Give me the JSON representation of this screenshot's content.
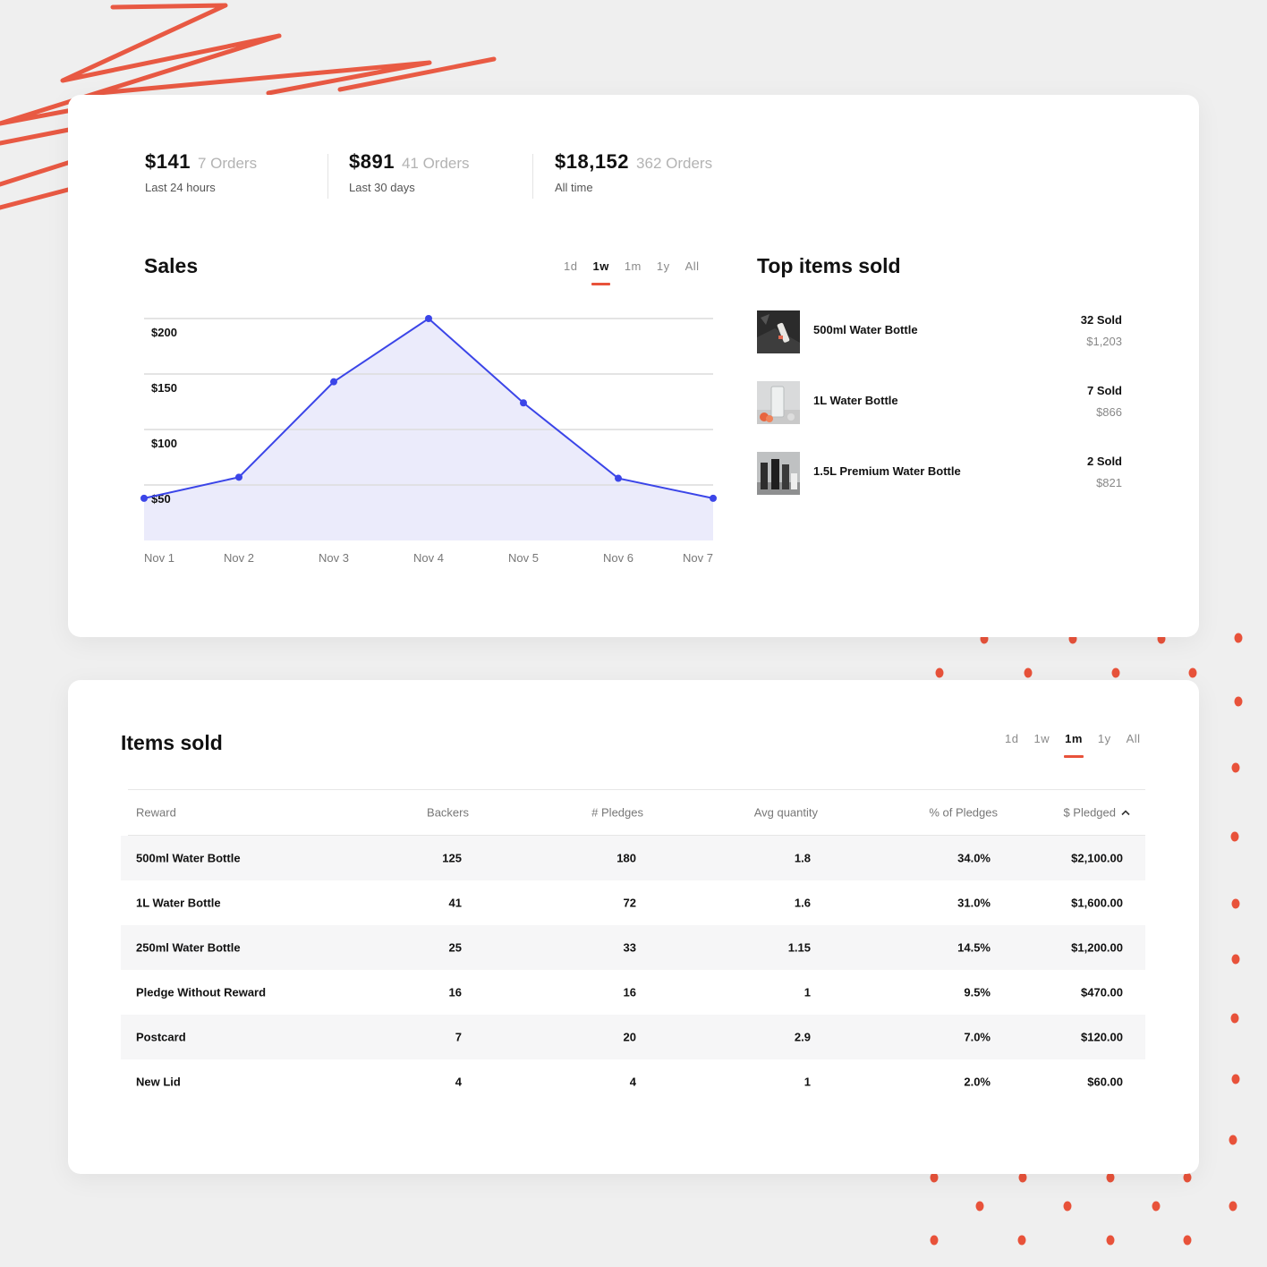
{
  "stats": [
    {
      "amount": "$141",
      "orders": "7 Orders",
      "label": "Last 24 hours"
    },
    {
      "amount": "$891",
      "orders": "41 Orders",
      "label": "Last 30 days"
    },
    {
      "amount": "$18,152",
      "orders": "362 Orders",
      "label": "All time"
    }
  ],
  "sales": {
    "title": "Sales",
    "tabs": [
      "1d",
      "1w",
      "1m",
      "1y",
      "All"
    ],
    "active_tab": "1w"
  },
  "chart_data": {
    "type": "area",
    "title": "Sales",
    "categories": [
      "Nov 1",
      "Nov 2",
      "Nov 3",
      "Nov 4",
      "Nov 5",
      "Nov 6",
      "Nov 7"
    ],
    "values": [
      38,
      57,
      143,
      200,
      124,
      56,
      38
    ],
    "y_ticks": [
      "$50",
      "$100",
      "$150",
      "$200"
    ],
    "y_tick_values": [
      50,
      100,
      150,
      200
    ],
    "ylim": [
      0,
      200
    ],
    "grid": true,
    "line_color": "#3b45e8",
    "fill_color": "#ebebfb"
  },
  "top_items": {
    "title": "Top items sold",
    "items": [
      {
        "name": "500ml Water Bottle",
        "sold": "32 Sold",
        "revenue": "$1,203"
      },
      {
        "name": "1L Water Bottle",
        "sold": "7 Sold",
        "revenue": "$866"
      },
      {
        "name": "1.5L Premium Water Bottle",
        "sold": "2 Sold",
        "revenue": "$821"
      }
    ]
  },
  "items_sold": {
    "title": "Items sold",
    "tabs": [
      "1d",
      "1w",
      "1m",
      "1y",
      "All"
    ],
    "active_tab": "1m",
    "columns": [
      "Reward",
      "Backers",
      "# Pledges",
      "Avg quantity",
      "% of Pledges",
      "$ Pledged"
    ],
    "rows": [
      [
        "500ml Water Bottle",
        "125",
        "180",
        "1.8",
        "34.0%",
        "$2,100.00"
      ],
      [
        "1L Water Bottle",
        "41",
        "72",
        "1.6",
        "31.0%",
        "$1,600.00"
      ],
      [
        "250ml Water Bottle",
        "25",
        "33",
        "1.15",
        "14.5%",
        "$1,200.00"
      ],
      [
        "Pledge Without Reward",
        "16",
        "16",
        "1",
        "9.5%",
        "$470.00"
      ],
      [
        "Postcard",
        "7",
        "20",
        "2.9",
        "7.0%",
        "$120.00"
      ],
      [
        "New Lid",
        "4",
        "4",
        "1",
        "2.0%",
        "$60.00"
      ]
    ],
    "sort_icon": "chevron-up-icon"
  },
  "colors": {
    "accent": "#e8523a",
    "chart_line": "#3b45e8"
  }
}
